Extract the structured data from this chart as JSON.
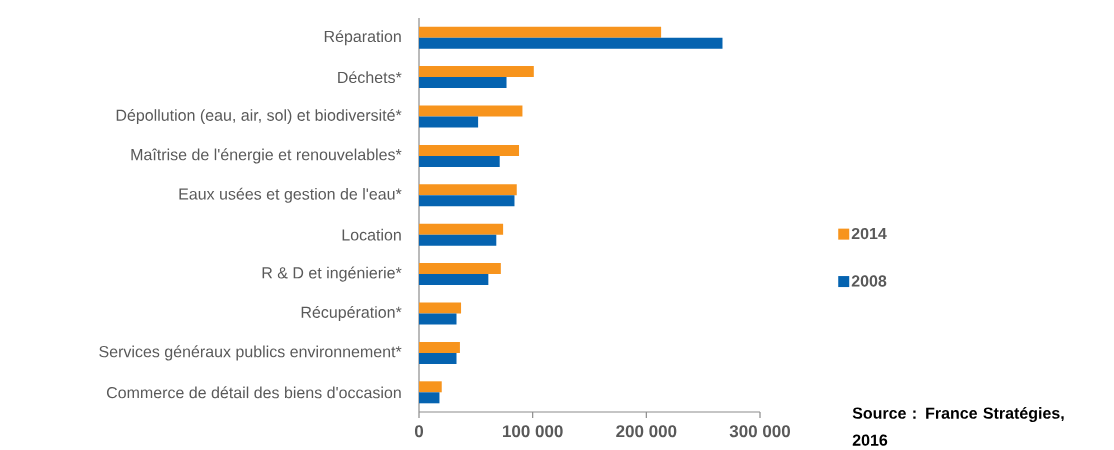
{
  "chart_data": {
    "type": "bar",
    "orientation": "horizontal",
    "categories": [
      "Réparation",
      "Déchets*",
      "Dépollution (eau, air, sol) et biodiversité*",
      "Maîtrise de l'énergie et renouvelables*",
      "Eaux usées et gestion de l'eau*",
      "Location",
      "R & D et ingénierie*",
      "Récupération*",
      "Services généraux publics environnement*",
      "Commerce de détail des biens d'occasion"
    ],
    "series": [
      {
        "name": "2014",
        "color": "#f7941d",
        "values": [
          213000,
          101000,
          91000,
          88000,
          86000,
          74000,
          72000,
          37000,
          36000,
          20000
        ]
      },
      {
        "name": "2008",
        "color": "#0563b0",
        "values": [
          267000,
          77000,
          52000,
          71000,
          84000,
          68000,
          61000,
          33000,
          33000,
          18000
        ]
      }
    ],
    "xlim": [
      0,
      300000
    ],
    "xticks": [
      0,
      {
        "value": 100000,
        "label": "100 000"
      },
      {
        "value": 200000,
        "label": "200 000"
      },
      {
        "value": 300000,
        "label": "300 000"
      }
    ],
    "legend": "right",
    "grid": false,
    "annotations": [
      "Source : France Stratégies, 2016"
    ]
  }
}
